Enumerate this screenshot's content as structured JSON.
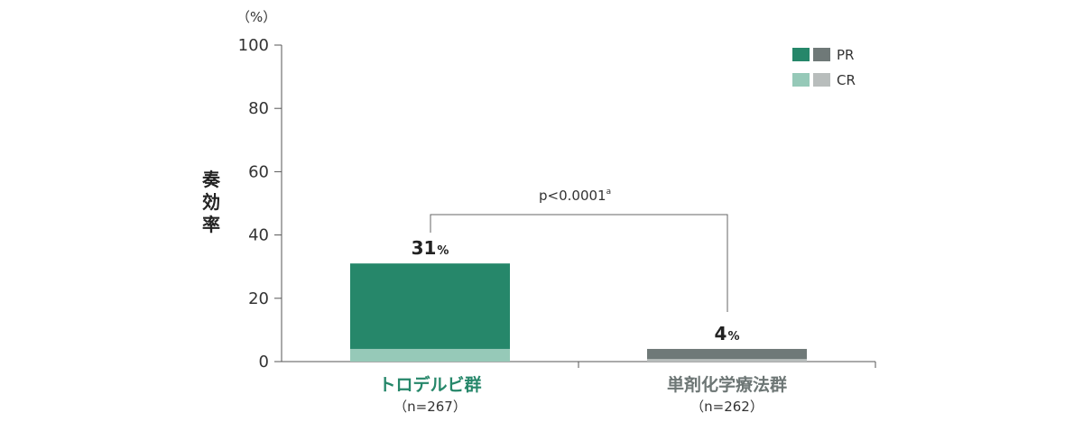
{
  "chart_data": {
    "type": "bar",
    "stacked": true,
    "y_unit": "（%）",
    "ylabel": "奏効率",
    "ylim": [
      0,
      100
    ],
    "yticks": [
      0,
      20,
      40,
      60,
      80,
      100
    ],
    "categories": [
      {
        "label": "トロデルビ群",
        "n": "（n=267）",
        "total_label": "31",
        "total_unit": "%",
        "color_pr": "#26876a",
        "color_cr": "#96c9b8",
        "label_color": "#26876a"
      },
      {
        "label": "単剤化学療法群",
        "n": "（n=262）",
        "total_label": "4",
        "total_unit": "%",
        "color_pr": "#6f7978",
        "color_cr": "#b8bdbc",
        "label_color": "#6d7675"
      }
    ],
    "series": [
      {
        "name": "CR",
        "values": [
          4,
          0.8
        ]
      },
      {
        "name": "PR",
        "values": [
          27,
          3.2
        ]
      }
    ],
    "legend": {
      "placement": "top-right",
      "entries": [
        {
          "name": "PR",
          "colors": [
            "#26876a",
            "#6f7978"
          ]
        },
        {
          "name": "CR",
          "colors": [
            "#96c9b8",
            "#b8bdbc"
          ]
        }
      ]
    },
    "annotation": {
      "text": "p<0.0001",
      "superscript": "a"
    },
    "grid": false
  }
}
